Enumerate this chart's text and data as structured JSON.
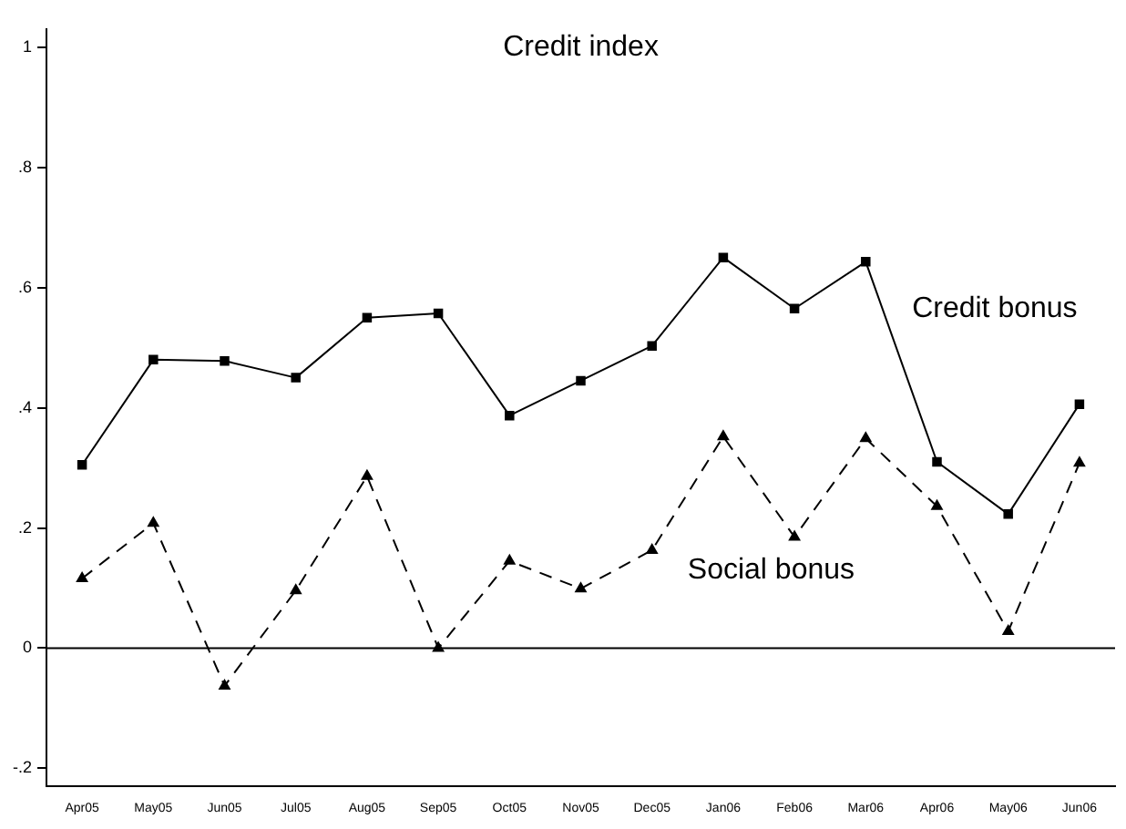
{
  "chart_data": {
    "type": "line",
    "title": "Credit index",
    "categories": [
      "Apr05",
      "May05",
      "Jun05",
      "Jul05",
      "Aug05",
      "Sep05",
      "Oct05",
      "Nov05",
      "Dec05",
      "Jan06",
      "Feb06",
      "Mar06",
      "Apr06",
      "May06",
      "Jun06"
    ],
    "series": [
      {
        "name": "Credit bonus",
        "color": "#000000",
        "marker": "square",
        "line_style": "solid",
        "values": [
          0.305,
          0.48,
          0.478,
          0.45,
          0.55,
          0.557,
          0.387,
          0.445,
          0.503,
          0.65,
          0.565,
          0.643,
          0.31,
          0.223,
          0.406
        ]
      },
      {
        "name": "Social bonus",
        "color": "#000000",
        "marker": "triangle",
        "line_style": "dashed",
        "values": [
          0.116,
          0.208,
          -0.063,
          0.096,
          0.286,
          0,
          0.145,
          0.099,
          0.163,
          0.352,
          0.185,
          0.349,
          0.236,
          0.028,
          0.308
        ]
      }
    ],
    "ylim": [
      -0.23,
      1.03
    ],
    "yticks": [
      {
        "value": -0.2,
        "label": "-.2"
      },
      {
        "value": 0,
        "label": "0"
      },
      {
        "value": 0.2,
        "label": ".2"
      },
      {
        "value": 0.4,
        "label": ".4"
      },
      {
        "value": 0.6,
        "label": ".6"
      },
      {
        "value": 0.8,
        "label": ".8"
      },
      {
        "value": 1,
        "label": "1"
      }
    ],
    "ref_lines": [
      {
        "axis": "y",
        "value": 0,
        "color": "#000000"
      }
    ],
    "grid": false,
    "legend": false
  }
}
